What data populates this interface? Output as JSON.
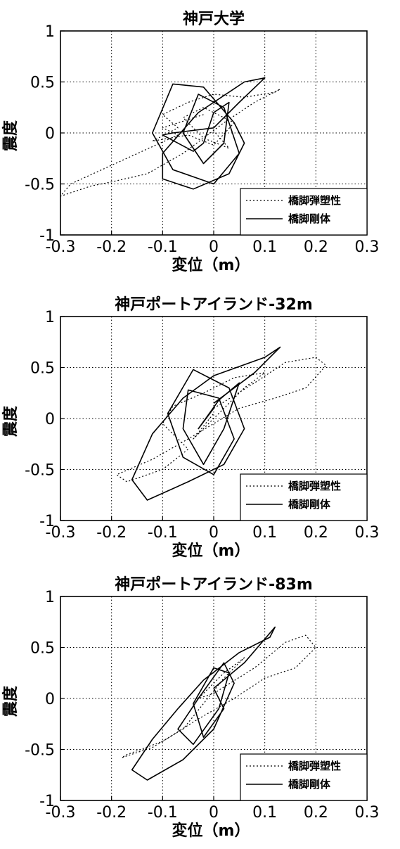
{
  "chart_data": [
    {
      "type": "line",
      "title": "神戸大学",
      "xlabel": "変位（m）",
      "ylabel": "震度",
      "xlim": [
        -0.3,
        0.3
      ],
      "ylim": [
        -1,
        1
      ],
      "xticks": [
        "-0.3",
        "-0.2",
        "-0.1",
        "0",
        "0.1",
        "0.2",
        "0.3"
      ],
      "yticks": [
        "1",
        "0.5",
        "0",
        "-0.5",
        "-1"
      ],
      "grid": true,
      "legend_position": "bottom-right",
      "series": [
        {
          "name": "橋脚弾塑性",
          "style": "dotted",
          "x": [
            -0.02,
            -0.1,
            -0.07,
            -0.28,
            -0.3,
            -0.24,
            -0.2,
            -0.13,
            -0.06,
            0.02,
            0.08,
            0.13,
            0.12,
            0.06,
            0.0,
            -0.05,
            -0.1,
            -0.07,
            -0.12,
            -0.05,
            0.0,
            0.04,
            -0.02,
            -0.06,
            -0.02,
            0.03,
            0.0
          ],
          "y": [
            0.18,
            0.05,
            -0.02,
            -0.5,
            -0.62,
            -0.52,
            -0.48,
            -0.4,
            -0.2,
            0.1,
            0.3,
            0.43,
            0.4,
            0.35,
            0.38,
            0.3,
            0.18,
            0.05,
            -0.08,
            -0.02,
            -0.12,
            0.1,
            0.25,
            0.15,
            -0.05,
            -0.15,
            0.02
          ]
        },
        {
          "name": "橋脚剛体",
          "style": "solid",
          "x": [
            0.0,
            0.05,
            0.1,
            0.06,
            -0.03,
            -0.1,
            -0.1,
            -0.04,
            0.03,
            0.06,
            0.04,
            -0.02,
            -0.08,
            -0.12,
            -0.08,
            0.0,
            0.05,
            0.02,
            -0.03,
            -0.06,
            -0.02,
            0.02,
            0.03,
            0.0,
            -0.02,
            -0.04,
            -0.1,
            -0.08,
            0.0
          ],
          "y": [
            0.05,
            0.3,
            0.54,
            0.5,
            0.2,
            -0.2,
            -0.45,
            -0.55,
            -0.4,
            -0.1,
            0.1,
            0.45,
            0.48,
            0.0,
            -0.36,
            -0.5,
            -0.2,
            0.25,
            0.38,
            0.0,
            -0.3,
            -0.1,
            0.3,
            0.2,
            -0.1,
            -0.18,
            -0.02,
            0.0,
            0.05
          ]
        }
      ]
    },
    {
      "type": "line",
      "title": "神戸ポートアイランド-32m",
      "xlabel": "変位（m）",
      "ylabel": "震度",
      "xlim": [
        -0.3,
        0.3
      ],
      "ylim": [
        -1,
        1
      ],
      "xticks": [
        "-0.3",
        "-0.2",
        "-0.1",
        "0",
        "0.1",
        "0.2",
        "0.3"
      ],
      "yticks": [
        "1",
        "0.5",
        "0",
        "-0.5",
        "-1"
      ],
      "grid": true,
      "legend_position": "bottom-right",
      "series": [
        {
          "name": "橋脚弾塑性",
          "style": "dotted",
          "x": [
            0.0,
            0.08,
            0.14,
            0.2,
            0.22,
            0.18,
            0.12,
            0.05,
            -0.05,
            -0.12,
            -0.19,
            -0.17,
            -0.1,
            -0.05,
            -0.1,
            -0.08,
            -0.02,
            0.04,
            0.1,
            0.06,
            0.0,
            -0.04,
            0.0
          ],
          "y": [
            0.1,
            0.35,
            0.55,
            0.6,
            0.52,
            0.3,
            0.2,
            0.1,
            -0.2,
            -0.4,
            -0.55,
            -0.62,
            -0.5,
            -0.3,
            -0.05,
            0.12,
            0.25,
            0.4,
            0.45,
            0.3,
            0.0,
            -0.2,
            0.05
          ]
        },
        {
          "name": "橋脚剛体",
          "style": "solid",
          "x": [
            0.0,
            0.08,
            0.13,
            0.1,
            0.0,
            -0.06,
            -0.12,
            -0.16,
            -0.13,
            -0.05,
            0.02,
            0.06,
            0.03,
            -0.04,
            -0.09,
            -0.06,
            0.0,
            0.04,
            0.01,
            -0.05,
            -0.06,
            -0.02,
            0.02,
            0.05,
            0.01,
            -0.03,
            0.0
          ],
          "y": [
            0.15,
            0.45,
            0.7,
            0.6,
            0.42,
            0.2,
            -0.15,
            -0.6,
            -0.8,
            -0.62,
            -0.45,
            -0.1,
            0.3,
            0.48,
            0.05,
            -0.38,
            -0.55,
            -0.2,
            0.2,
            0.28,
            -0.1,
            -0.45,
            -0.1,
            0.35,
            0.18,
            -0.1,
            0.1
          ]
        }
      ]
    },
    {
      "type": "line",
      "title": "神戸ポートアイランド-83m",
      "xlabel": "変位（m）",
      "ylabel": "震度",
      "xlim": [
        -0.3,
        0.3
      ],
      "ylim": [
        -1,
        1
      ],
      "xticks": [
        "-0.3",
        "-0.2",
        "-0.1",
        "0",
        "0.1",
        "0.2",
        "0.3"
      ],
      "yticks": [
        "1",
        "0.5",
        "0",
        "-0.5",
        "-1"
      ],
      "grid": true,
      "legend_position": "bottom-right",
      "series": [
        {
          "name": "橋脚弾塑性",
          "style": "dotted",
          "x": [
            0.0,
            0.08,
            0.14,
            0.18,
            0.2,
            0.16,
            0.1,
            0.04,
            -0.03,
            -0.1,
            -0.17,
            -0.18,
            -0.12,
            -0.06,
            -0.02,
            0.02,
            0.06,
            0.02,
            -0.03,
            0.0
          ],
          "y": [
            0.05,
            0.3,
            0.55,
            0.62,
            0.5,
            0.3,
            0.2,
            0.0,
            -0.2,
            -0.42,
            -0.55,
            -0.58,
            -0.48,
            -0.3,
            -0.05,
            0.2,
            0.4,
            0.25,
            0.0,
            0.05
          ]
        },
        {
          "name": "橋脚剛体",
          "style": "solid",
          "x": [
            0.0,
            0.06,
            0.12,
            0.11,
            0.05,
            -0.02,
            -0.07,
            -0.12,
            -0.16,
            -0.13,
            -0.06,
            0.0,
            0.04,
            0.02,
            -0.03,
            -0.07,
            -0.04,
            0.01,
            0.03,
            0.0,
            -0.04,
            -0.02,
            0.02,
            0.0
          ],
          "y": [
            0.1,
            0.35,
            0.7,
            0.6,
            0.45,
            0.18,
            -0.1,
            -0.4,
            -0.7,
            -0.8,
            -0.6,
            -0.3,
            0.15,
            0.35,
            0.0,
            -0.3,
            -0.45,
            -0.1,
            0.25,
            0.3,
            -0.05,
            -0.38,
            -0.1,
            0.1
          ]
        }
      ]
    }
  ]
}
